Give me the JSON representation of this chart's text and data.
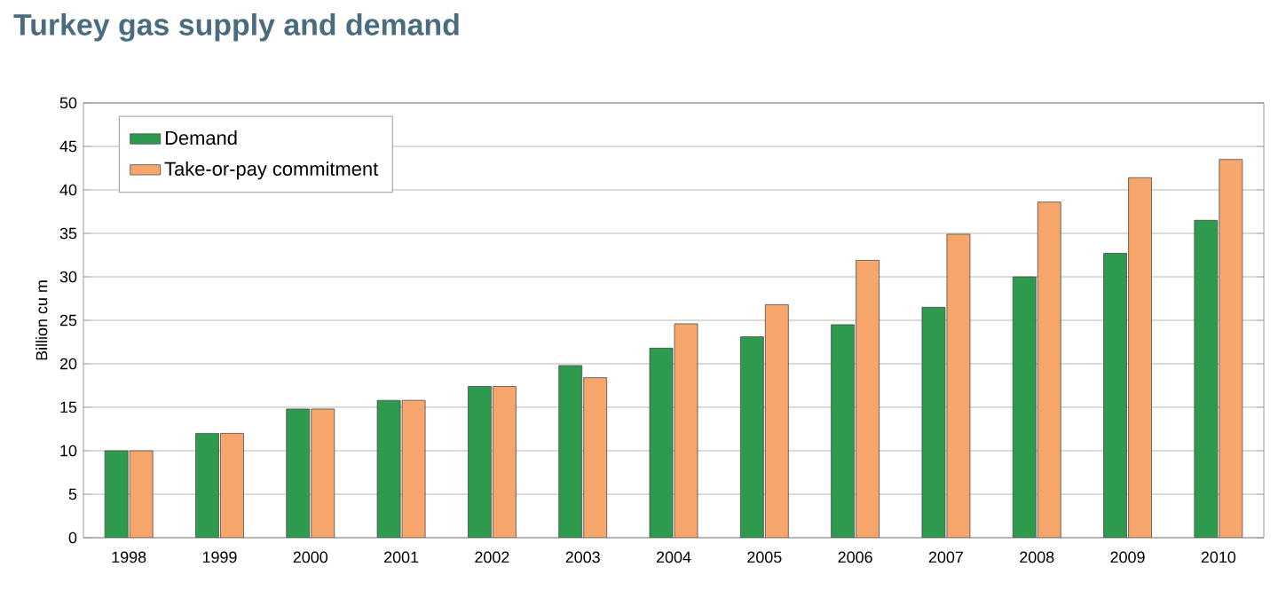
{
  "chart_data": {
    "type": "bar",
    "title": "Turkey gas supply and demand",
    "ylabel": "Billion cu m",
    "categories": [
      "1998",
      "1999",
      "2000",
      "2001",
      "2002",
      "2003",
      "2004",
      "2005",
      "2006",
      "2007",
      "2008",
      "2009",
      "2010"
    ],
    "series": [
      {
        "name": "Demand",
        "color": "#2e9a4e",
        "values": [
          10,
          12,
          14.8,
          15.8,
          17.4,
          19.8,
          21.8,
          23.1,
          24.5,
          26.5,
          30,
          32.7,
          36.5
        ]
      },
      {
        "name": "Take-or-pay commitment",
        "color": "#f6a66a",
        "values": [
          10,
          12,
          14.8,
          15.8,
          17.4,
          18.4,
          24.6,
          26.8,
          31.9,
          34.9,
          38.6,
          41.4,
          43.5
        ]
      }
    ],
    "ylim": [
      0,
      50
    ],
    "yticks": [
      0,
      5,
      10,
      15,
      20,
      25,
      30,
      35,
      40,
      45,
      50
    ],
    "grid": "y",
    "legend": "top left"
  }
}
